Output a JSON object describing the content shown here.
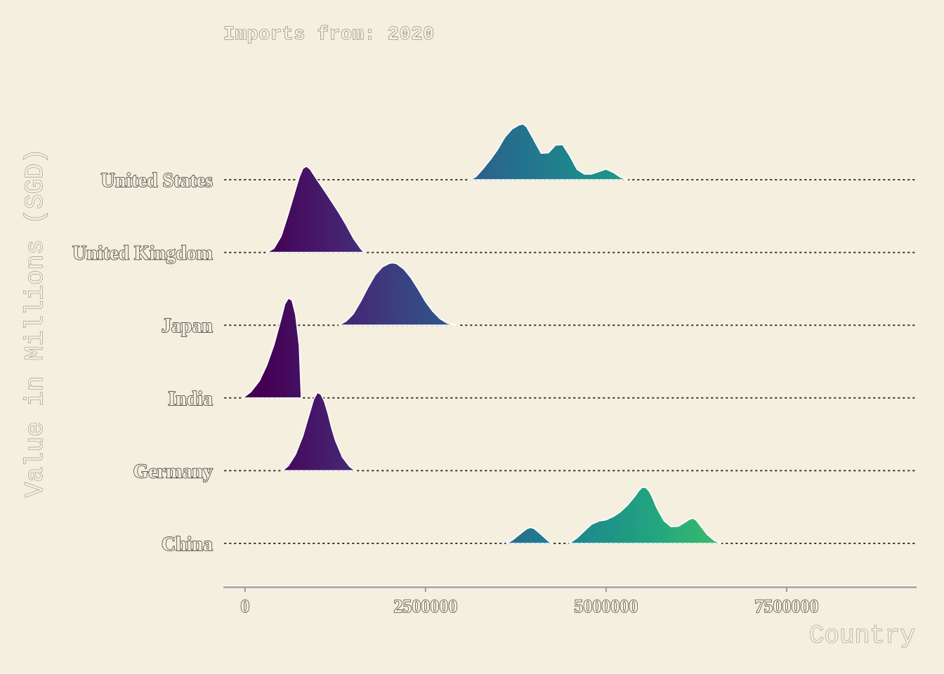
{
  "chart_data": {
    "type": "ridgeline",
    "title": "Imports from: 2020",
    "xlabel": "Country",
    "ylabel": "Value in Millions (SGD)",
    "xlim": [
      -300000,
      9300000
    ],
    "x_ticks": [
      0,
      2500000,
      5000000,
      7500000
    ],
    "x_tick_labels": [
      "0",
      "2500000",
      "5000000",
      "7500000"
    ],
    "categories": [
      "China",
      "Germany",
      "India",
      "Japan",
      "United Kingdom",
      "United States"
    ],
    "colorscale": {
      "name": "viridis",
      "from": "#440154",
      "mid": "#21908c",
      "to": "#5ec962",
      "domain": [
        0,
        7500000
      ]
    },
    "series": [
      {
        "category": "China",
        "segments": [
          {
            "x": [
              3620000,
              3700000,
              3800000,
              3900000,
              3950000,
              4000000,
              4100000,
              4200000,
              4250000
            ],
            "density": [
              0.0,
              0.08,
              0.22,
              0.36,
              0.39,
              0.37,
              0.22,
              0.06,
              0.0
            ]
          },
          {
            "x": [
              4490000,
              4600000,
              4700000,
              4800000,
              4900000,
              5000000,
              5100000,
              5200000,
              5300000,
              5400000,
              5450000,
              5500000,
              5550000,
              5600000,
              5650000,
              5700000,
              5800000,
              5900000,
              6000000,
              6100000,
              6150000,
              6200000,
              6250000,
              6300000,
              6400000,
              6500000,
              6590000
            ],
            "density": [
              0.0,
              0.14,
              0.31,
              0.47,
              0.55,
              0.58,
              0.66,
              0.78,
              0.95,
              1.16,
              1.29,
              1.38,
              1.37,
              1.28,
              1.1,
              0.88,
              0.56,
              0.41,
              0.42,
              0.53,
              0.59,
              0.62,
              0.57,
              0.45,
              0.22,
              0.07,
              0.0
            ]
          }
        ]
      },
      {
        "category": "Germany",
        "segments": [
          {
            "x": [
              520000,
              600000,
              700000,
              800000,
              850000,
              900000,
              950000,
              1000000,
              1050000,
              1100000,
              1150000,
              1200000,
              1250000,
              1350000,
              1450000,
              1530000
            ],
            "density": [
              0.0,
              0.12,
              0.4,
              0.85,
              1.15,
              1.45,
              1.75,
              1.92,
              1.88,
              1.7,
              1.4,
              1.05,
              0.75,
              0.33,
              0.1,
              0.0
            ]
          }
        ]
      },
      {
        "category": "India",
        "segments": [
          {
            "x": [
              -30000,
              80000,
              200000,
              300000,
              400000,
              500000,
              550000,
              600000,
              650000,
              700000,
              750000,
              780000
            ],
            "density": [
              0.0,
              0.15,
              0.42,
              0.8,
              1.3,
              1.95,
              2.3,
              2.45,
              2.4,
              2.05,
              1.3,
              0.0
            ]
          }
        ]
      },
      {
        "category": "Japan",
        "segments": [
          {
            "x": [
              1300000,
              1400000,
              1500000,
              1600000,
              1700000,
              1800000,
              1900000,
              2000000,
              2050000,
              2100000,
              2200000,
              2300000,
              2400000,
              2500000,
              2600000,
              2700000,
              2800000,
              2900000,
              2940000
            ],
            "density": [
              0.0,
              0.1,
              0.28,
              0.58,
              0.92,
              1.23,
              1.43,
              1.52,
              1.53,
              1.51,
              1.38,
              1.16,
              0.88,
              0.58,
              0.34,
              0.16,
              0.05,
              0.01,
              0.0
            ]
          }
        ]
      },
      {
        "category": "United Kingdom",
        "segments": [
          {
            "x": [
              300000,
              400000,
              500000,
              600000,
              700000,
              750000,
              800000,
              850000,
              900000,
              1000000,
              1100000,
              1200000,
              1300000,
              1400000,
              1500000,
              1600000,
              1650000
            ],
            "density": [
              0.0,
              0.1,
              0.4,
              0.95,
              1.55,
              1.85,
              2.06,
              2.12,
              2.05,
              1.78,
              1.52,
              1.25,
              0.98,
              0.68,
              0.35,
              0.1,
              0.0
            ]
          }
        ]
      },
      {
        "category": "United States",
        "segments": [
          {
            "x": [
              3120000,
              3200000,
              3300000,
              3400000,
              3500000,
              3600000,
              3700000,
              3800000,
              3850000,
              3900000,
              4000000,
              4100000,
              4200000,
              4300000,
              4400000,
              4500000,
              4600000,
              4700000,
              4800000,
              4900000,
              5000000,
              5100000,
              5200000,
              5300000
            ],
            "density": [
              0.0,
              0.08,
              0.28,
              0.5,
              0.75,
              1.05,
              1.25,
              1.35,
              1.37,
              1.3,
              0.98,
              0.65,
              0.66,
              0.85,
              0.86,
              0.58,
              0.25,
              0.14,
              0.14,
              0.2,
              0.26,
              0.18,
              0.06,
              0.0
            ]
          }
        ]
      }
    ],
    "grid": false,
    "legend": "none"
  }
}
